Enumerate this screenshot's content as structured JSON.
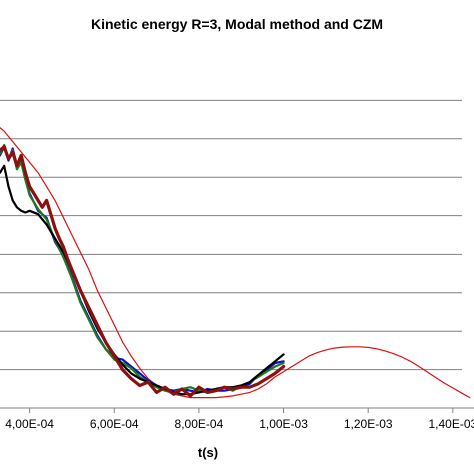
{
  "chart_data": {
    "type": "line",
    "title": "Kinetic energy R=3, Modal method and CZM",
    "xlabel": "t(s)",
    "ylabel": "",
    "xlim": [
      0.00033,
      0.00145
    ],
    "ylim": [
      0,
      1
    ],
    "xticks": [
      0.0004,
      0.0006,
      0.0008,
      0.001,
      0.0012,
      0.0014
    ],
    "xtick_labels": [
      "4,00E-04",
      "6,00E-04",
      "8,00E-04",
      "1,00E-03",
      "1,20E-03",
      "1,40E-03"
    ],
    "gridlines_y": [
      0.111,
      0.222,
      0.333,
      0.444,
      0.556,
      0.667,
      0.778,
      0.889
    ],
    "legend": "none",
    "series": [
      {
        "color": "#0a0dcc",
        "width": 2.2,
        "x": [
          0.00033,
          0.00034,
          0.00035,
          0.00036,
          0.00037,
          0.00038,
          0.00039,
          0.0004,
          0.00042,
          0.00044,
          0.00046,
          0.00048,
          0.0005,
          0.00052,
          0.00054,
          0.00056,
          0.00058,
          0.0006,
          0.00062,
          0.00064,
          0.00066,
          0.00068,
          0.0007,
          0.00072,
          0.00074,
          0.00076,
          0.00078,
          0.0008,
          0.00082,
          0.00084,
          0.00086,
          0.00088,
          0.0009,
          0.00092,
          0.00094,
          0.00096,
          0.00098,
          0.001
        ],
        "y": [
          0.73,
          0.755,
          0.715,
          0.75,
          0.7,
          0.715,
          0.66,
          0.62,
          0.57,
          0.55,
          0.48,
          0.44,
          0.38,
          0.31,
          0.26,
          0.21,
          0.17,
          0.145,
          0.14,
          0.12,
          0.1,
          0.08,
          0.065,
          0.055,
          0.05,
          0.055,
          0.05,
          0.045,
          0.055,
          0.05,
          0.05,
          0.055,
          0.06,
          0.07,
          0.095,
          0.11,
          0.13,
          0.135
        ]
      },
      {
        "color": "#1f7a1f",
        "width": 2.2,
        "x": [
          0.00033,
          0.00034,
          0.00035,
          0.00036,
          0.00037,
          0.00038,
          0.00039,
          0.0004,
          0.00042,
          0.00044,
          0.00046,
          0.00048,
          0.0005,
          0.00052,
          0.00054,
          0.00056,
          0.00058,
          0.0006,
          0.00062,
          0.00064,
          0.00066,
          0.00068,
          0.0007,
          0.00072,
          0.00074,
          0.00076,
          0.00078,
          0.0008,
          0.00082,
          0.00084,
          0.00086,
          0.00088,
          0.0009,
          0.00092,
          0.00094,
          0.00096,
          0.00098,
          0.001
        ],
        "y": [
          0.735,
          0.76,
          0.72,
          0.745,
          0.69,
          0.71,
          0.66,
          0.615,
          0.575,
          0.545,
          0.485,
          0.435,
          0.375,
          0.305,
          0.255,
          0.205,
          0.17,
          0.14,
          0.13,
          0.115,
          0.09,
          0.075,
          0.06,
          0.05,
          0.045,
          0.055,
          0.06,
          0.05,
          0.045,
          0.055,
          0.06,
          0.05,
          0.065,
          0.075,
          0.09,
          0.105,
          0.12,
          0.13
        ]
      },
      {
        "color": "#8b1010",
        "width": 3.2,
        "x": [
          0.00033,
          0.00034,
          0.00035,
          0.00036,
          0.00037,
          0.00038,
          0.00039,
          0.0004,
          0.00041,
          0.00042,
          0.00043,
          0.00044,
          0.00045,
          0.00046,
          0.00047,
          0.00048,
          0.00049,
          0.0005,
          0.00052,
          0.00054,
          0.00056,
          0.00058,
          0.0006,
          0.00062,
          0.00064,
          0.00066,
          0.00068,
          0.0007,
          0.00072,
          0.00074,
          0.00076,
          0.00078,
          0.0008,
          0.00082,
          0.00084,
          0.00086,
          0.00088,
          0.0009,
          0.00092,
          0.00094,
          0.00096,
          0.00098,
          0.001
        ],
        "y": [
          0.745,
          0.755,
          0.72,
          0.74,
          0.7,
          0.73,
          0.68,
          0.64,
          0.62,
          0.6,
          0.58,
          0.6,
          0.56,
          0.52,
          0.49,
          0.465,
          0.43,
          0.4,
          0.34,
          0.29,
          0.24,
          0.19,
          0.15,
          0.11,
          0.085,
          0.065,
          0.075,
          0.045,
          0.06,
          0.04,
          0.055,
          0.035,
          0.06,
          0.045,
          0.05,
          0.06,
          0.055,
          0.06,
          0.06,
          0.07,
          0.085,
          0.1,
          0.12
        ]
      },
      {
        "color": "#000000",
        "width": 2.2,
        "x": [
          0.00033,
          0.00034,
          0.00035,
          0.00036,
          0.00037,
          0.00038,
          0.00039,
          0.0004,
          0.00042,
          0.00044,
          0.00046,
          0.00048,
          0.0005,
          0.00052,
          0.00054,
          0.00056,
          0.00058,
          0.0006,
          0.00062,
          0.00064,
          0.00066,
          0.00068,
          0.0007,
          0.00072,
          0.00074,
          0.00076,
          0.00078,
          0.0008,
          0.00082,
          0.00084,
          0.00086,
          0.00088,
          0.0009,
          0.00092,
          0.00094,
          0.00096,
          0.00098,
          0.001
        ],
        "y": [
          0.68,
          0.7,
          0.64,
          0.6,
          0.58,
          0.57,
          0.565,
          0.57,
          0.56,
          0.53,
          0.49,
          0.45,
          0.4,
          0.34,
          0.28,
          0.23,
          0.19,
          0.155,
          0.125,
          0.1,
          0.085,
          0.075,
          0.065,
          0.055,
          0.045,
          0.04,
          0.04,
          0.045,
          0.05,
          0.055,
          0.06,
          0.06,
          0.065,
          0.075,
          0.095,
          0.115,
          0.135,
          0.155
        ]
      },
      {
        "color": "#dd1111",
        "width": 1.2,
        "x": [
          0.00033,
          0.00034,
          0.00036,
          0.00038,
          0.0004,
          0.00042,
          0.00044,
          0.00046,
          0.00048,
          0.0005,
          0.00052,
          0.00054,
          0.00056,
          0.00058,
          0.0006,
          0.00062,
          0.00064,
          0.00066,
          0.00068,
          0.0007,
          0.00072,
          0.00074,
          0.00076,
          0.00078,
          0.0008,
          0.00082,
          0.00084,
          0.00086,
          0.00088,
          0.0009,
          0.00092,
          0.00094,
          0.00096,
          0.00098,
          0.001,
          0.00102,
          0.00104,
          0.00106,
          0.00108,
          0.0011,
          0.00112,
          0.00114,
          0.00116,
          0.00118,
          0.0012,
          0.00122,
          0.00124,
          0.00126,
          0.00128,
          0.0013,
          0.00132,
          0.00134,
          0.00136,
          0.00138,
          0.0014,
          0.00142,
          0.00144
        ],
        "y": [
          0.81,
          0.8,
          0.77,
          0.74,
          0.71,
          0.68,
          0.64,
          0.6,
          0.55,
          0.5,
          0.45,
          0.4,
          0.34,
          0.29,
          0.24,
          0.19,
          0.15,
          0.115,
          0.085,
          0.065,
          0.05,
          0.04,
          0.035,
          0.03,
          0.03,
          0.03,
          0.03,
          0.032,
          0.035,
          0.04,
          0.045,
          0.055,
          0.07,
          0.09,
          0.105,
          0.12,
          0.135,
          0.15,
          0.16,
          0.168,
          0.173,
          0.176,
          0.177,
          0.177,
          0.175,
          0.171,
          0.165,
          0.157,
          0.147,
          0.135,
          0.12,
          0.104,
          0.088,
          0.072,
          0.058,
          0.044,
          0.03
        ]
      }
    ]
  }
}
